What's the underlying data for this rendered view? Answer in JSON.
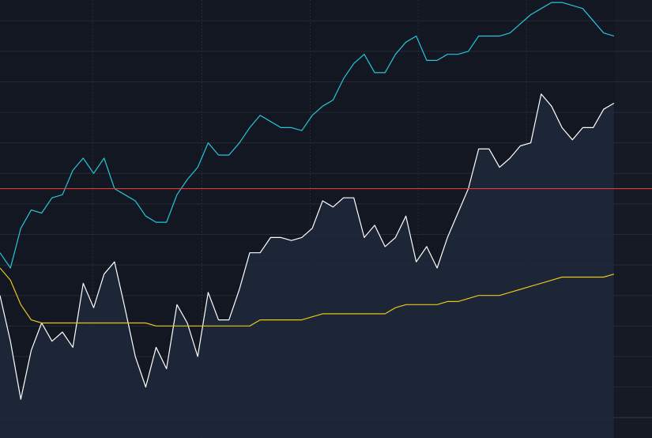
{
  "chart_data": {
    "type": "line",
    "x": [
      0,
      1,
      2,
      3,
      4,
      5,
      6,
      7,
      8,
      9,
      10,
      11,
      12,
      13,
      14,
      15,
      16,
      17,
      18,
      19,
      20,
      21,
      22,
      23,
      24,
      25,
      26,
      27,
      28,
      29,
      30,
      31,
      32,
      33,
      34,
      35,
      36,
      37,
      38,
      39,
      40,
      41,
      42,
      43,
      44,
      45,
      46,
      47,
      48,
      49,
      50,
      51,
      52,
      53,
      54,
      55,
      56,
      57,
      58,
      59
    ],
    "series": [
      {
        "color": "#ffffff",
        "fill": "#1e293b",
        "values": [
          40,
          25,
          6,
          22,
          31,
          25,
          28,
          23,
          44,
          36,
          47,
          51,
          36,
          20,
          10,
          23,
          16,
          37,
          31,
          20,
          41,
          32,
          32,
          42,
          54,
          54,
          59,
          59,
          58,
          59,
          62,
          71,
          69,
          72,
          72,
          59,
          63,
          56,
          59,
          66,
          51,
          56,
          49,
          59,
          67,
          75,
          88,
          88,
          82,
          85,
          89,
          90,
          106,
          102,
          95,
          91,
          95,
          95,
          101,
          103
        ]
      },
      {
        "color": "#26c6da",
        "values": [
          54,
          49,
          62,
          68,
          67,
          72,
          73,
          81,
          85,
          80,
          85,
          75,
          73,
          71,
          66,
          64,
          64,
          73,
          78,
          82,
          90,
          86,
          86,
          90,
          95,
          99,
          97,
          95,
          95,
          94,
          99,
          102,
          104,
          111,
          116,
          119,
          113,
          113,
          119,
          123,
          125,
          117,
          117,
          119,
          119,
          120,
          125,
          125,
          125,
          126,
          129,
          132,
          134,
          136,
          136,
          135,
          134,
          130,
          126,
          125
        ]
      },
      {
        "color": "#e6c619",
        "values": [
          49,
          45,
          37,
          32,
          31,
          31,
          31,
          31,
          31,
          31,
          31,
          31,
          31,
          31,
          31,
          30,
          30,
          30,
          30,
          30,
          30,
          30,
          30,
          30,
          30,
          32,
          32,
          32,
          32,
          32,
          33,
          34,
          34,
          34,
          34,
          34,
          34,
          34,
          36,
          37,
          37,
          37,
          37,
          38,
          38,
          39,
          40,
          40,
          40,
          41,
          42,
          43,
          44,
          45,
          46,
          46,
          46,
          46,
          46,
          47
        ]
      }
    ],
    "reference_line": {
      "value": 75,
      "color": "#e53935"
    },
    "xlim": [
      0,
      62.65
    ],
    "ylim": [
      -6.7,
      136.8
    ],
    "xticks": [
      8.9,
      19.4,
      29.8,
      40.2,
      50.6
    ],
    "yticks": [
      0,
      10,
      20,
      30,
      40,
      50,
      60,
      70,
      80,
      90,
      100,
      110,
      120,
      130
    ],
    "grid": true
  }
}
